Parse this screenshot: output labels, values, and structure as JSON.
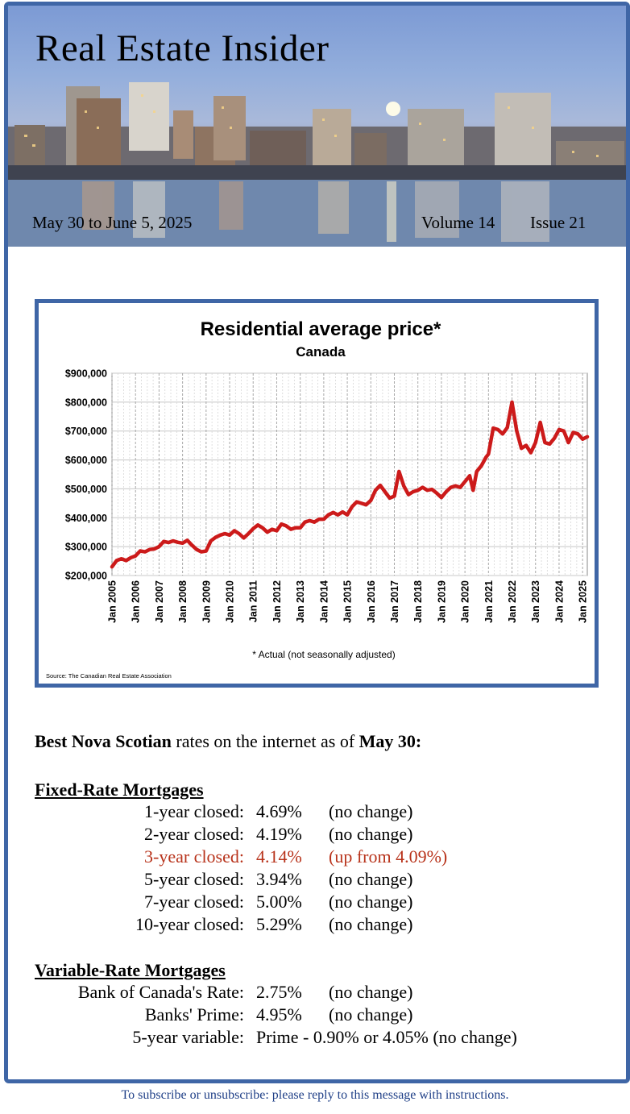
{
  "newsletter": {
    "title": "Real Estate Insider",
    "date_range": "May 30 to June 5, 2025",
    "volume": "Volume 14",
    "issue": "Issue 21"
  },
  "chart_data": {
    "type": "line",
    "title": "Residential average price*",
    "subtitle": "Canada",
    "footnote": "* Actual (not seasonally adjusted)",
    "source": "Source: The Canadian Real Estate Association",
    "x_tick_labels": [
      "Jan 2005",
      "Jan 2006",
      "Jan 2007",
      "Jan 2008",
      "Jan 2009",
      "Jan 2010",
      "Jan 2011",
      "Jan 2012",
      "Jan 2013",
      "Jan 2014",
      "Jan 2015",
      "Jan 2016",
      "Jan 2017",
      "Jan 2018",
      "Jan 2019",
      "Jan 2020",
      "Jan 2021",
      "Jan 2022",
      "Jan 2023",
      "Jan 2024",
      "Jan 2025"
    ],
    "y_tick_labels": [
      "$900,000",
      "$800,000",
      "$700,000",
      "$600,000",
      "$500,000",
      "$400,000",
      "$300,000",
      "$200,000"
    ],
    "ylim": [
      200000,
      900000
    ],
    "xlim": [
      2005,
      2025.2
    ],
    "grid": true,
    "line_color": "#cc1a1a",
    "series": [
      {
        "x": [
          2005.0,
          2005.2,
          2005.4,
          2005.6,
          2005.8,
          2006.0,
          2006.2,
          2006.4,
          2006.6,
          2006.8,
          2007.0,
          2007.2,
          2007.4,
          2007.6,
          2007.8,
          2008.0,
          2008.2,
          2008.4,
          2008.6,
          2008.8,
          2009.0,
          2009.2,
          2009.4,
          2009.6,
          2009.8,
          2010.0,
          2010.2,
          2010.4,
          2010.6,
          2010.8,
          2011.0,
          2011.2,
          2011.4,
          2011.6,
          2011.8,
          2012.0,
          2012.2,
          2012.4,
          2012.6,
          2012.8,
          2013.0,
          2013.2,
          2013.4,
          2013.6,
          2013.8,
          2014.0,
          2014.2,
          2014.4,
          2014.6,
          2014.8,
          2015.0,
          2015.2,
          2015.4,
          2015.6,
          2015.8,
          2016.0,
          2016.2,
          2016.4,
          2016.6,
          2016.8,
          2017.0,
          2017.2,
          2017.4,
          2017.6,
          2017.8,
          2018.0,
          2018.2,
          2018.4,
          2018.6,
          2018.8,
          2019.0,
          2019.2,
          2019.4,
          2019.6,
          2019.8,
          2020.0,
          2020.2,
          2020.35,
          2020.5,
          2020.7,
          2020.9,
          2021.0,
          2021.2,
          2021.4,
          2021.6,
          2021.8,
          2022.0,
          2022.2,
          2022.4,
          2022.6,
          2022.8,
          2023.0,
          2023.2,
          2023.4,
          2023.6,
          2023.8,
          2024.0,
          2024.2,
          2024.4,
          2024.6,
          2024.8,
          2025.0,
          2025.2
        ],
        "y": [
          230000,
          252000,
          258000,
          252000,
          262000,
          268000,
          285000,
          282000,
          290000,
          292000,
          300000,
          318000,
          314000,
          320000,
          315000,
          312000,
          322000,
          305000,
          290000,
          282000,
          285000,
          320000,
          332000,
          340000,
          345000,
          340000,
          355000,
          345000,
          330000,
          345000,
          362000,
          375000,
          365000,
          350000,
          360000,
          355000,
          378000,
          372000,
          360000,
          365000,
          365000,
          385000,
          390000,
          385000,
          395000,
          395000,
          410000,
          418000,
          410000,
          420000,
          410000,
          438000,
          455000,
          450000,
          445000,
          460000,
          495000,
          512000,
          490000,
          468000,
          475000,
          560000,
          510000,
          480000,
          490000,
          495000,
          505000,
          495000,
          498000,
          485000,
          470000,
          490000,
          505000,
          510000,
          505000,
          525000,
          545000,
          495000,
          560000,
          580000,
          610000,
          620000,
          710000,
          705000,
          690000,
          712000,
          800000,
          700000,
          640000,
          650000,
          625000,
          660000,
          730000,
          660000,
          655000,
          675000,
          705000,
          700000,
          660000,
          695000,
          690000,
          672000,
          680000
        ]
      }
    ]
  },
  "rates": {
    "intro_bold1": "Best Nova Scotian",
    "intro_mid": " rates on the internet as of ",
    "intro_bold2": "May 30:",
    "fixed_heading": "Fixed-Rate Mortgages",
    "fixed": [
      {
        "label": "1-year closed:",
        "value": "4.69%",
        "change": "(no change)"
      },
      {
        "label": "2-year closed:",
        "value": "4.19%",
        "change": "(no change)"
      },
      {
        "label": "3-year closed:",
        "value": "4.14%",
        "change": "(up from 4.09%)"
      },
      {
        "label": "5-year closed:",
        "value": "3.94%",
        "change": "(no change)"
      },
      {
        "label": "7-year closed:",
        "value": "5.00%",
        "change": "(no change)"
      },
      {
        "label": "10-year closed:",
        "value": "5.29%",
        "change": "(no change)"
      }
    ],
    "variable_heading": "Variable-Rate Mortgages",
    "variable": [
      {
        "label": "Bank of Canada's Rate:",
        "value": "2.75%",
        "change": "(no change)"
      },
      {
        "label": "Banks' Prime:",
        "value": "4.95%",
        "change": "(no change)"
      },
      {
        "label": "5-year variable:",
        "value": "Prime - 0.90% or 4.05% (no change)",
        "change": ""
      }
    ],
    "highlight_color": "#b8331b"
  },
  "footer": {
    "text": "To subscribe or unsubscribe: please reply to this message with instructions."
  }
}
